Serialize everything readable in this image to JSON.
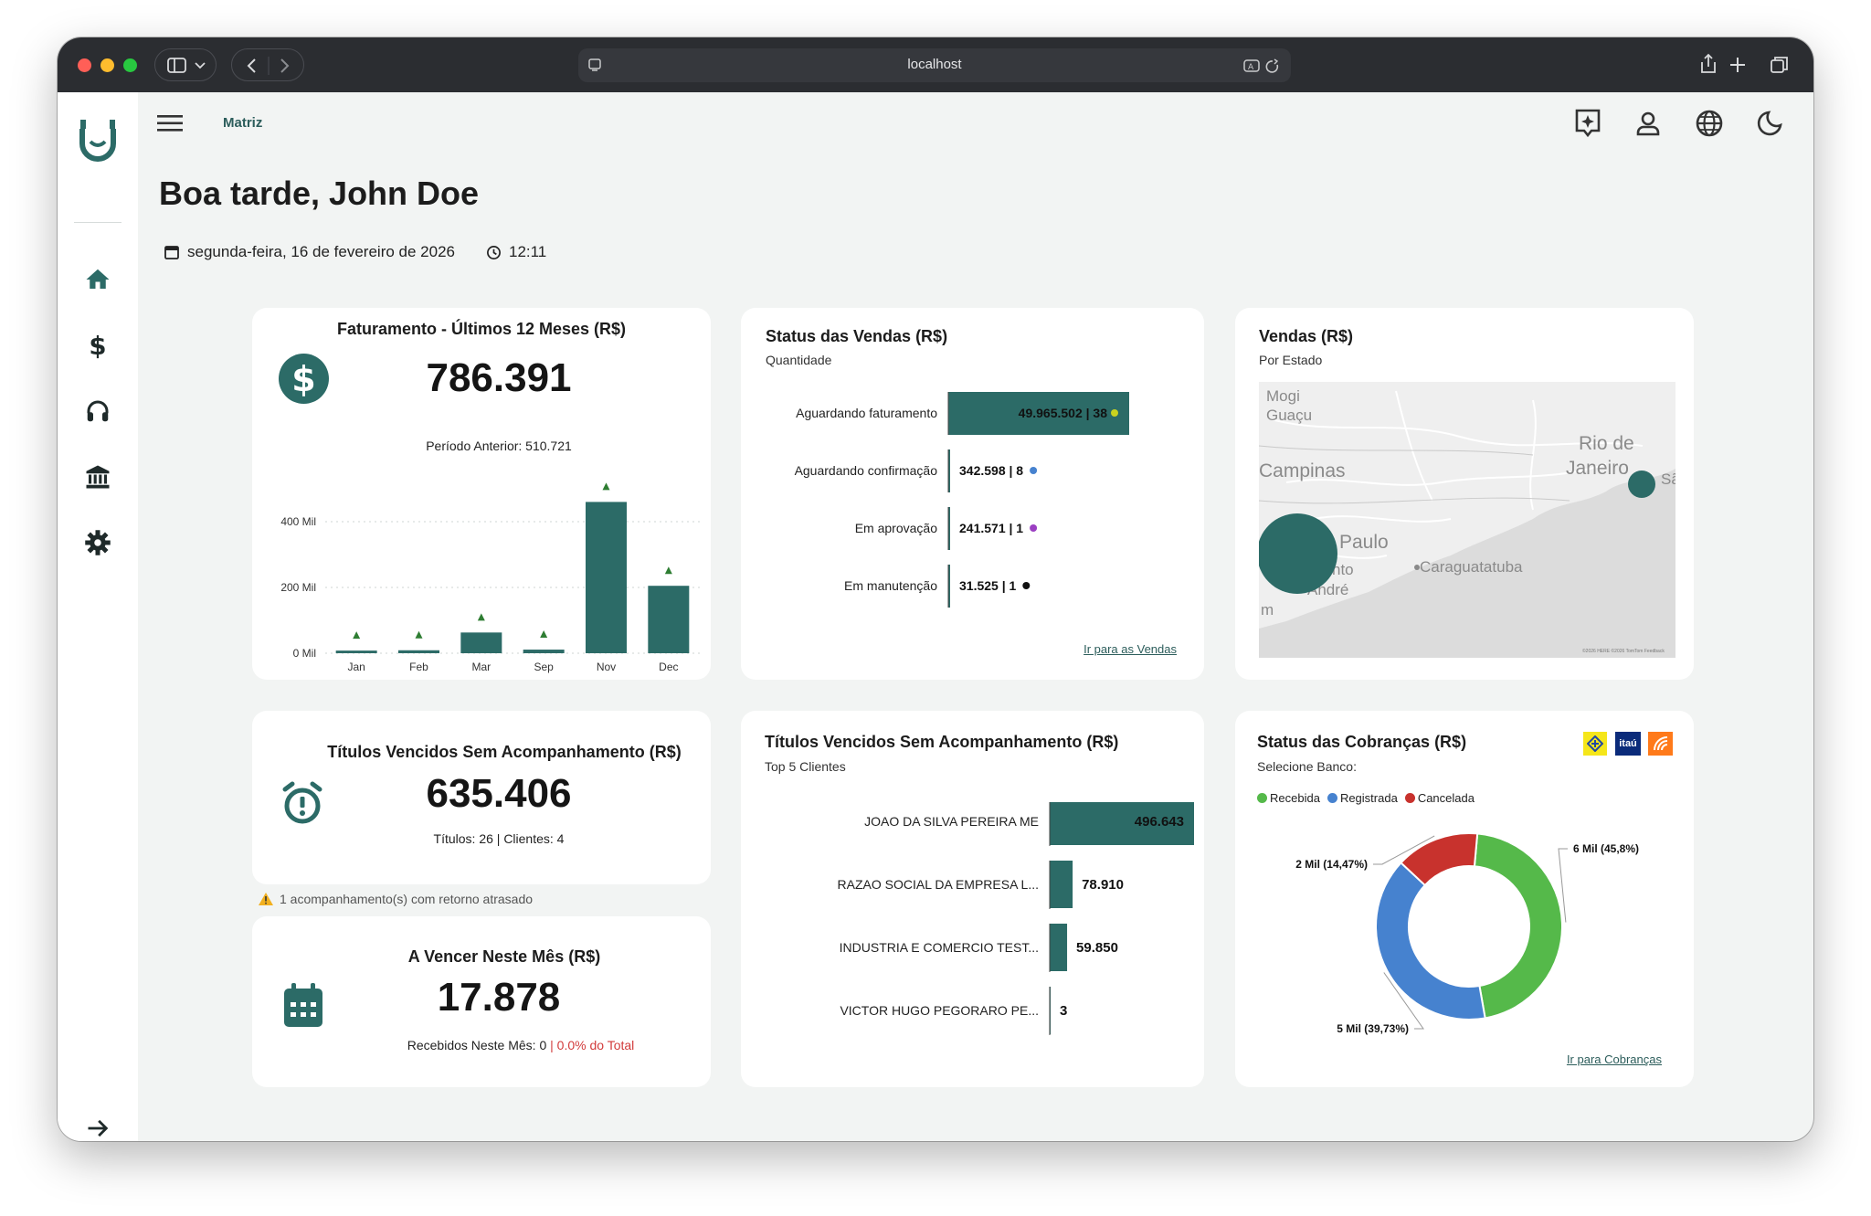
{
  "browser": {
    "url": "localhost"
  },
  "header": {
    "breadcrumb": "Matriz"
  },
  "greeting": {
    "title": "Boa tarde, John Doe",
    "date": "segunda-feira, 16 de fevereiro de 2026",
    "time": "12:11"
  },
  "colors": {
    "primary": "#2c6b67",
    "green": "#55b94a",
    "blue": "#4682cf",
    "red": "#c8322d"
  },
  "faturamento": {
    "title": "Faturamento - Últimos 12 Meses (R$)",
    "value": "786.391",
    "previous": "Período Anterior: 510.721",
    "chart_data": {
      "type": "bar",
      "categories": [
        "Jan",
        "Feb",
        "Mar",
        "Sep",
        "Nov",
        "Dec"
      ],
      "values": [
        8000,
        9000,
        63000,
        11000,
        460000,
        205000
      ],
      "ytick_labels": [
        "0 Mil",
        "200 Mil",
        "400 Mil"
      ],
      "yticks": [
        0,
        200000,
        400000
      ],
      "ylim": [
        0,
        500000
      ]
    }
  },
  "status_vendas": {
    "title": "Status das Vendas (R$)",
    "subtitle": "Quantidade",
    "link": "Ir para as Vendas",
    "chart_data": {
      "type": "bar",
      "orientation": "horizontal",
      "categories": [
        "Aguardando faturamento",
        "Aguardando confirmação",
        "Em aprovação",
        "Em manutenção"
      ],
      "values": [
        49965502,
        342598,
        241571,
        31525
      ],
      "labels": [
        "49.965.502 | 38",
        "342.598 | 8",
        "241.571 | 1",
        "31.525 | 1"
      ],
      "dot_colors": [
        "#c9d31f",
        "#4682cf",
        "#9b3fc2",
        "#111111"
      ]
    }
  },
  "vendas_estado": {
    "title": "Vendas (R$)",
    "subtitle": "Por Estado",
    "map_labels": [
      "Mogi",
      "Guaçu",
      "Campinas",
      "Rio de",
      "Janeiro",
      "Sã",
      "Paulo",
      "nto",
      "André",
      "m",
      "Caraguatatuba"
    ],
    "attribution": "©2026 HERE ©2026 TomTom Feedback"
  },
  "titulos_vencidos": {
    "title": "Títulos Vencidos Sem Acompanhamento (R$)",
    "value": "635.406",
    "detail": "Títulos: 26 | Clientes: 4",
    "warning": "1 acompanhamento(s) com retorno atrasado"
  },
  "a_vencer": {
    "title": "A Vencer Neste Mês (R$)",
    "value": "17.878",
    "detail": "Recebidos Neste Mês: 0",
    "pct": "| 0.0% do Total"
  },
  "top_clientes": {
    "title": "Títulos Vencidos Sem Acompanhamento (R$)",
    "subtitle": "Top 5 Clientes",
    "chart_data": {
      "type": "bar",
      "orientation": "horizontal",
      "categories": [
        "JOAO DA SILVA PEREIRA ME",
        "RAZAO SOCIAL DA EMPRESA L...",
        "INDUSTRIA E COMERCIO TEST...",
        "VICTOR HUGO PEGORARO PE..."
      ],
      "values": [
        496643,
        78910,
        59850,
        3
      ],
      "labels": [
        "496.643",
        "78.910",
        "59.850",
        "3"
      ]
    }
  },
  "cobrancas": {
    "title": "Status das Cobranças (R$)",
    "subtitle": "Selecione Banco:",
    "link": "Ir para Cobranças",
    "banks": [
      "itaú"
    ],
    "chart_data": {
      "type": "pie",
      "categories": [
        "Recebida",
        "Registrada",
        "Cancelada"
      ],
      "values": [
        45.8,
        39.73,
        14.47
      ],
      "labels": [
        "6 Mil (45,8%)",
        "5 Mil (39,73%)",
        "2 Mil (14,47%)"
      ],
      "colors": [
        "#55b94a",
        "#4682cf",
        "#c8322d"
      ]
    }
  }
}
